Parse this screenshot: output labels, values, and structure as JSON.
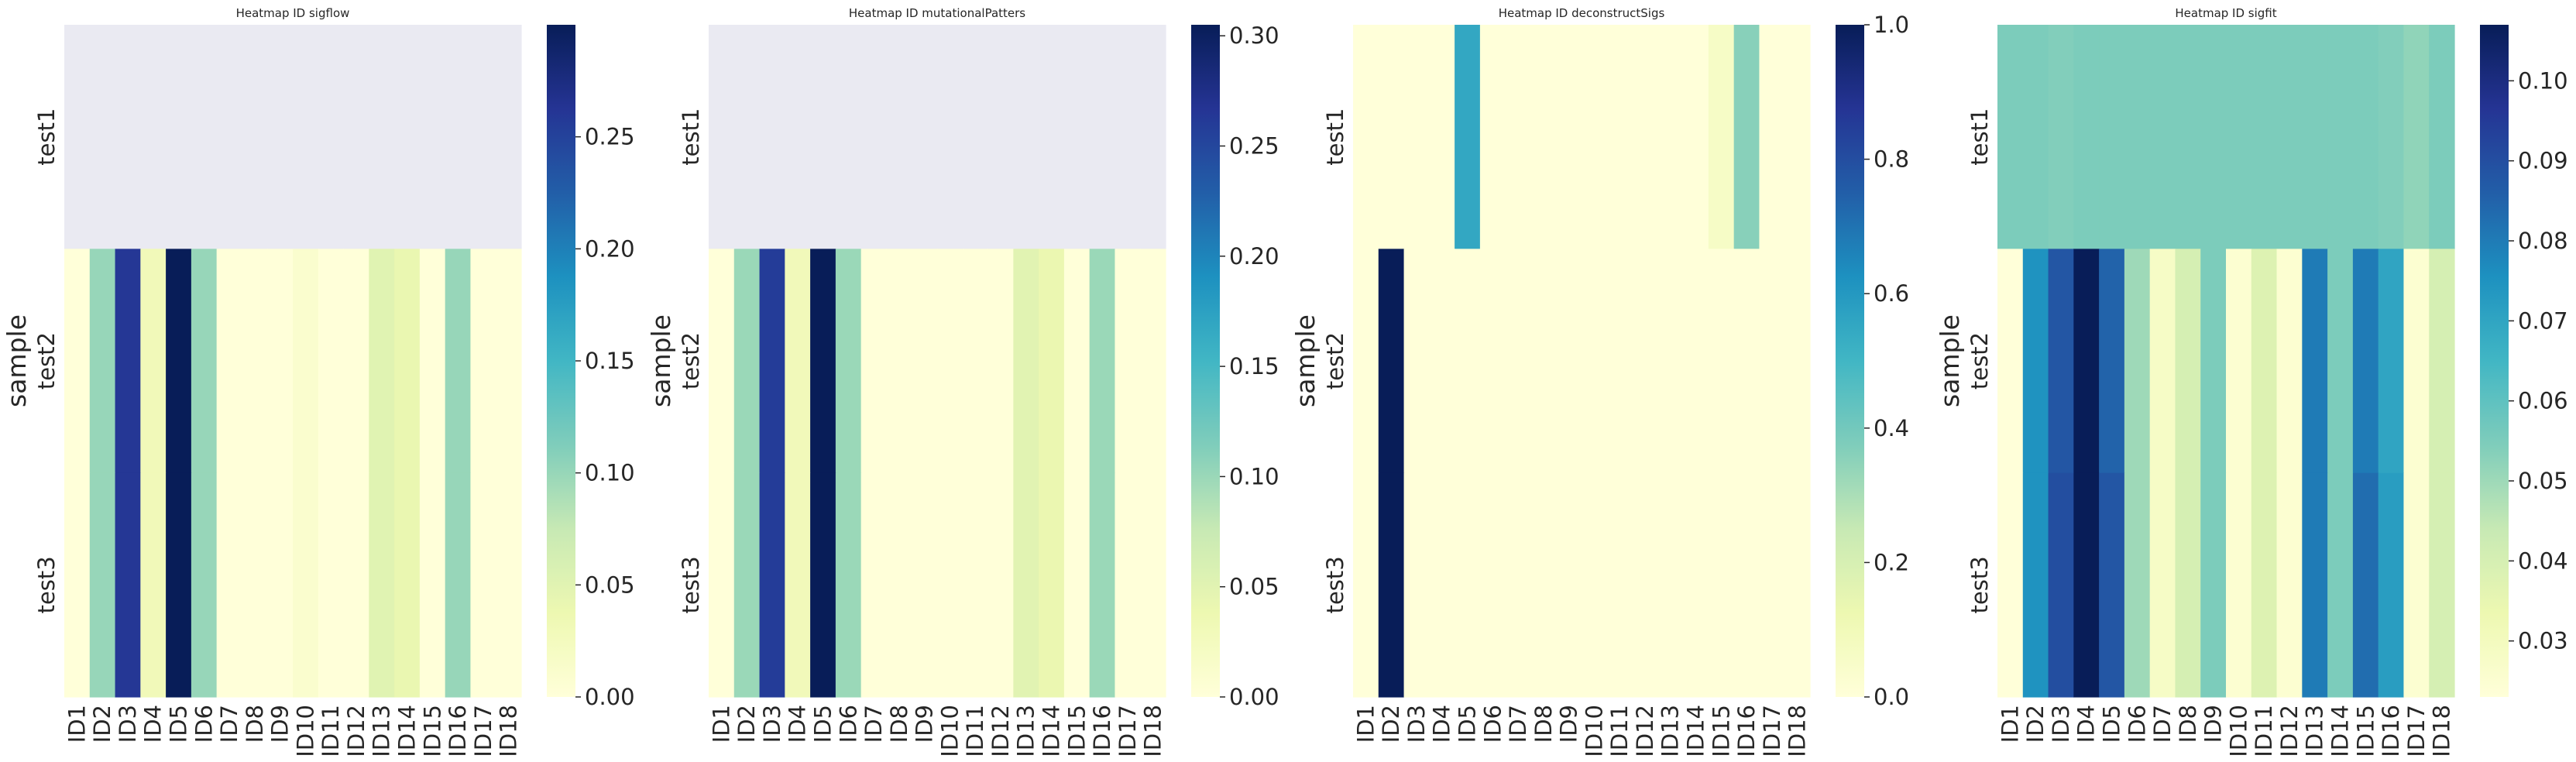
{
  "chart_data": [
    {
      "type": "heatmap",
      "title": "Heatmap ID sigflow",
      "ylabel": "sample",
      "xlabel": "",
      "x": [
        "ID1",
        "ID2",
        "ID3",
        "ID4",
        "ID5",
        "ID6",
        "ID7",
        "ID8",
        "ID9",
        "ID10",
        "ID11",
        "ID12",
        "ID13",
        "ID14",
        "ID15",
        "ID16",
        "ID17",
        "ID18"
      ],
      "y": [
        "test1",
        "test2",
        "test3"
      ],
      "values": [
        [
          null,
          null,
          null,
          null,
          null,
          null,
          null,
          null,
          null,
          null,
          null,
          null,
          null,
          null,
          null,
          null,
          null,
          null
        ],
        [
          0.0,
          0.1,
          0.26,
          0.03,
          0.3,
          0.1,
          0.0,
          0.0,
          0.0,
          0.01,
          0.0,
          0.0,
          0.05,
          0.04,
          0.0,
          0.1,
          0.0,
          0.0
        ],
        [
          0.0,
          0.1,
          0.26,
          0.03,
          0.3,
          0.1,
          0.0,
          0.0,
          0.0,
          0.01,
          0.0,
          0.0,
          0.05,
          0.04,
          0.0,
          0.1,
          0.0,
          0.0
        ]
      ],
      "vmin": 0.0,
      "vmax": 0.3,
      "colorbar_ticks": [
        0.0,
        0.05,
        0.1,
        0.15,
        0.2,
        0.25
      ],
      "colorbar_labels": [
        "0.00",
        "0.05",
        "0.10",
        "0.15",
        "0.20",
        "0.25"
      ],
      "colormap": "YlGnBu",
      "missing_color": "#eaeaf2"
    },
    {
      "type": "heatmap",
      "title": "Heatmap ID mutationalPatters",
      "ylabel": "sample",
      "xlabel": "",
      "x": [
        "ID1",
        "ID2",
        "ID3",
        "ID4",
        "ID5",
        "ID6",
        "ID7",
        "ID8",
        "ID9",
        "ID10",
        "ID11",
        "ID12",
        "ID13",
        "ID14",
        "ID15",
        "ID16",
        "ID17",
        "ID18"
      ],
      "y": [
        "test1",
        "test2",
        "test3"
      ],
      "values": [
        [
          null,
          null,
          null,
          null,
          null,
          null,
          null,
          null,
          null,
          null,
          null,
          null,
          null,
          null,
          null,
          null,
          null,
          null
        ],
        [
          0.0,
          0.1,
          0.26,
          0.03,
          0.305,
          0.1,
          0.0,
          0.0,
          0.0,
          0.0,
          0.0,
          0.0,
          0.05,
          0.04,
          0.0,
          0.1,
          0.0,
          0.0
        ],
        [
          0.0,
          0.1,
          0.26,
          0.03,
          0.305,
          0.1,
          0.0,
          0.0,
          0.0,
          0.0,
          0.0,
          0.0,
          0.05,
          0.04,
          0.0,
          0.1,
          0.0,
          0.0
        ]
      ],
      "vmin": 0.0,
      "vmax": 0.305,
      "colorbar_ticks": [
        0.0,
        0.05,
        0.1,
        0.15,
        0.2,
        0.25,
        0.3
      ],
      "colorbar_labels": [
        "0.00",
        "0.05",
        "0.10",
        "0.15",
        "0.20",
        "0.25",
        "0.30"
      ],
      "colormap": "YlGnBu",
      "missing_color": "#eaeaf2"
    },
    {
      "type": "heatmap",
      "title": "Heatmap ID deconstructSigs",
      "ylabel": "sample",
      "xlabel": "",
      "x": [
        "ID1",
        "ID2",
        "ID3",
        "ID4",
        "ID5",
        "ID6",
        "ID7",
        "ID8",
        "ID9",
        "ID10",
        "ID11",
        "ID12",
        "ID13",
        "ID14",
        "ID15",
        "ID16",
        "ID17",
        "ID18"
      ],
      "y": [
        "test1",
        "test2",
        "test3"
      ],
      "values": [
        [
          0.0,
          0.0,
          0.0,
          0.0,
          0.55,
          0.0,
          0.0,
          0.0,
          0.0,
          0.0,
          0.0,
          0.0,
          0.0,
          0.0,
          0.06,
          0.36,
          0.0,
          0.0
        ],
        [
          0.0,
          1.0,
          0.0,
          0.0,
          0.0,
          0.0,
          0.0,
          0.0,
          0.0,
          0.0,
          0.0,
          0.0,
          0.0,
          0.0,
          0.0,
          0.0,
          0.0,
          0.0
        ],
        [
          0.0,
          1.0,
          0.0,
          0.0,
          0.0,
          0.0,
          0.0,
          0.0,
          0.0,
          0.0,
          0.0,
          0.0,
          0.0,
          0.0,
          0.0,
          0.0,
          0.0,
          0.0
        ]
      ],
      "vmin": 0.0,
      "vmax": 1.0,
      "colorbar_ticks": [
        0.0,
        0.2,
        0.4,
        0.6,
        0.8,
        1.0
      ],
      "colorbar_labels": [
        "0.0",
        "0.2",
        "0.4",
        "0.6",
        "0.8",
        "1.0"
      ],
      "colormap": "YlGnBu",
      "missing_color": "#eaeaf2"
    },
    {
      "type": "heatmap",
      "title": "Heatmap ID sigfit",
      "ylabel": "sample",
      "xlabel": "",
      "x": [
        "ID1",
        "ID2",
        "ID3",
        "ID4",
        "ID5",
        "ID6",
        "ID7",
        "ID8",
        "ID9",
        "ID10",
        "ID11",
        "ID12",
        "ID13",
        "ID14",
        "ID15",
        "ID16",
        "ID17",
        "ID18"
      ],
      "y": [
        "test1",
        "test2",
        "test3"
      ],
      "values": [
        [
          0.055,
          0.055,
          0.054,
          0.055,
          0.055,
          0.055,
          0.055,
          0.055,
          0.055,
          0.055,
          0.055,
          0.055,
          0.055,
          0.055,
          0.055,
          0.054,
          0.052,
          0.055
        ],
        [
          0.023,
          0.075,
          0.088,
          0.107,
          0.085,
          0.05,
          0.028,
          0.04,
          0.055,
          0.025,
          0.038,
          0.025,
          0.08,
          0.055,
          0.08,
          0.07,
          0.025,
          0.04
        ],
        [
          0.023,
          0.075,
          0.09,
          0.107,
          0.088,
          0.05,
          0.028,
          0.04,
          0.055,
          0.025,
          0.038,
          0.025,
          0.08,
          0.055,
          0.083,
          0.072,
          0.025,
          0.04
        ]
      ],
      "vmin": 0.023,
      "vmax": 0.107,
      "colorbar_ticks": [
        0.03,
        0.04,
        0.05,
        0.06,
        0.07,
        0.08,
        0.09,
        0.1
      ],
      "colorbar_labels": [
        "0.03",
        "0.04",
        "0.05",
        "0.06",
        "0.07",
        "0.08",
        "0.09",
        "0.10"
      ],
      "colormap": "YlGnBu",
      "missing_color": "#eaeaf2"
    }
  ]
}
